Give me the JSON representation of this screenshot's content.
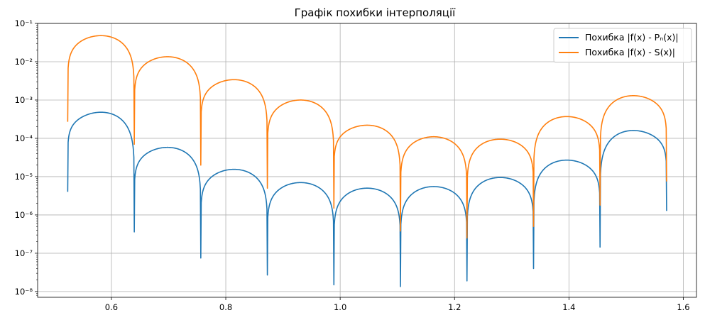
{
  "chart_data": {
    "type": "line",
    "title": "Графік похибки інтерполяції",
    "xlabel": "",
    "ylabel": "",
    "xlim": [
      0.471,
      1.623
    ],
    "ylim_log10": [
      -8.15,
      -1.0
    ],
    "yscale": "log",
    "grid": true,
    "legend": "top-right",
    "x_domain": [
      0.5236,
      1.5708
    ],
    "nodes": [
      0.5236,
      0.64,
      0.7563,
      0.8727,
      0.989,
      1.1054,
      1.2217,
      1.3381,
      1.4544,
      1.5708
    ],
    "xticks": [
      {
        "value": 0.6,
        "label": "0.6"
      },
      {
        "value": 0.8,
        "label": "0.8"
      },
      {
        "value": 1.0,
        "label": "1.0"
      },
      {
        "value": 1.2,
        "label": "1.2"
      },
      {
        "value": 1.4,
        "label": "1.4"
      },
      {
        "value": 1.6,
        "label": "1.6"
      }
    ],
    "yticks": [
      {
        "exp": -8,
        "label": "10⁻⁸"
      },
      {
        "exp": -7,
        "label": "10⁻⁷"
      },
      {
        "exp": -6,
        "label": "10⁻⁶"
      },
      {
        "exp": -5,
        "label": "10⁻⁵"
      },
      {
        "exp": -4,
        "label": "10⁻⁴"
      },
      {
        "exp": -3,
        "label": "10⁻³"
      },
      {
        "exp": -2,
        "label": "10⁻²"
      },
      {
        "exp": -1,
        "label": "10⁻¹"
      }
    ],
    "series": [
      {
        "name": "Похибка |f(x) - Pₙ(x)|",
        "color": "#1f77b4",
        "node_values": [
          4e-06,
          3.6e-07,
          7.5e-08,
          2.7e-08,
          1.5e-08,
          1.35e-08,
          1.9e-08,
          4e-08,
          1.45e-07,
          1.2e-06
        ],
        "peaks": [
          0.00048,
          5.8e-05,
          1.55e-05,
          7e-06,
          5e-06,
          5.5e-06,
          9.5e-06,
          2.7e-05,
          0.00016
        ]
      },
      {
        "name": "Похибка |f(x) - S(x)|",
        "color": "#ff7f0e",
        "node_values": [
          0.00027,
          7e-05,
          2e-05,
          5e-06,
          1.5e-06,
          3.8e-07,
          2.5e-07,
          5e-07,
          1.8e-06,
          7e-06
        ],
        "peaks": [
          0.048,
          0.0135,
          0.0034,
          0.001,
          0.00022,
          0.00011,
          9.5e-05,
          0.00037,
          0.0013
        ]
      }
    ]
  }
}
